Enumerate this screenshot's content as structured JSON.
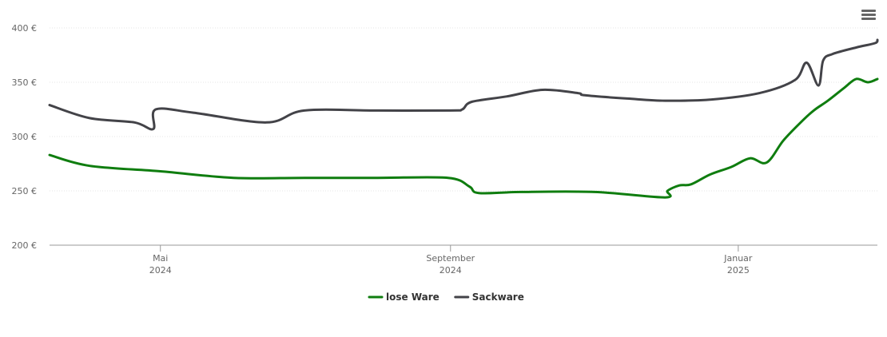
{
  "chart_data": {
    "type": "line",
    "y_ticks": [
      "200 €",
      "250 €",
      "300 €",
      "350 €",
      "400 €"
    ],
    "ylim": [
      200,
      400
    ],
    "x_ticks": [
      {
        "month": "Mai",
        "year": "2024",
        "date": "2024-05-01"
      },
      {
        "month": "September",
        "year": "2024",
        "date": "2024-09-01"
      },
      {
        "month": "Januar",
        "year": "2025",
        "date": "2025-01-01"
      }
    ],
    "xlim": [
      "2024-03-15",
      "2025-02-15"
    ],
    "grid": true,
    "legend_position": "bottom-center",
    "series": [
      {
        "name": "lose Ware",
        "color": "#0f7d0f",
        "points": [
          [
            "2024-03-15",
            283
          ],
          [
            "2024-04-01",
            273
          ],
          [
            "2024-05-01",
            268
          ],
          [
            "2024-06-01",
            262
          ],
          [
            "2024-07-01",
            262
          ],
          [
            "2024-08-01",
            262
          ],
          [
            "2024-08-31",
            262
          ],
          [
            "2024-09-09",
            254
          ],
          [
            "2024-09-13",
            248
          ],
          [
            "2024-10-01",
            249
          ],
          [
            "2024-11-01",
            249
          ],
          [
            "2024-12-01",
            244
          ],
          [
            "2024-12-02",
            250
          ],
          [
            "2024-12-07",
            255
          ],
          [
            "2024-12-12",
            256
          ],
          [
            "2024-12-20",
            265
          ],
          [
            "2024-12-29",
            272
          ],
          [
            "2025-01-06",
            280
          ],
          [
            "2025-01-13",
            276
          ],
          [
            "2025-01-20",
            296
          ],
          [
            "2025-01-27",
            312
          ],
          [
            "2025-02-02",
            324
          ],
          [
            "2025-02-08",
            333
          ],
          [
            "2025-02-15",
            345
          ],
          [
            "2025-02-20",
            353
          ],
          [
            "2025-02-25",
            350
          ],
          [
            "2025-03-01",
            353
          ]
        ]
      },
      {
        "name": "Sackware",
        "color": "#434348",
        "points": [
          [
            "2024-03-15",
            329
          ],
          [
            "2024-04-01",
            317
          ],
          [
            "2024-04-20",
            313
          ],
          [
            "2024-04-28",
            307
          ],
          [
            "2024-04-29",
            325
          ],
          [
            "2024-05-15",
            322
          ],
          [
            "2024-06-15",
            313
          ],
          [
            "2024-07-01",
            324
          ],
          [
            "2024-08-01",
            324
          ],
          [
            "2024-09-01",
            324
          ],
          [
            "2024-09-06",
            325
          ],
          [
            "2024-09-10",
            332
          ],
          [
            "2024-09-25",
            337
          ],
          [
            "2024-10-10",
            343
          ],
          [
            "2024-10-25",
            340
          ],
          [
            "2024-10-28",
            338
          ],
          [
            "2024-11-15",
            335
          ],
          [
            "2024-12-01",
            333
          ],
          [
            "2024-12-20",
            334
          ],
          [
            "2025-01-10",
            340
          ],
          [
            "2025-01-25",
            352
          ],
          [
            "2025-01-30",
            368
          ],
          [
            "2025-02-04",
            347
          ],
          [
            "2025-02-06",
            370
          ],
          [
            "2025-02-10",
            376
          ],
          [
            "2025-02-20",
            382
          ],
          [
            "2025-02-28",
            386
          ],
          [
            "2025-03-01",
            389
          ]
        ]
      }
    ]
  },
  "menu_icon": "hamburger-menu-icon"
}
